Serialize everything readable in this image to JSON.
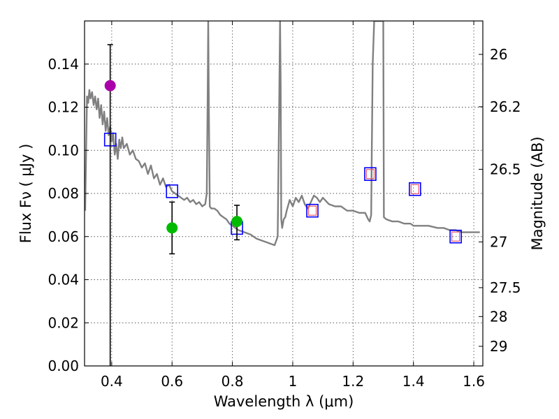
{
  "chart_data": {
    "type": "scatter",
    "xlabel": "Wavelength  λ (μm)",
    "ylabel": "Flux  Fν  ( μJy )",
    "y2label": "Magnitude (AB)",
    "xlim": [
      0.31,
      1.63
    ],
    "ylim": [
      0.0,
      0.16
    ],
    "grid": true,
    "x_ticks": [
      0.4,
      0.6,
      0.8,
      1,
      1.2,
      1.4,
      1.6
    ],
    "x_tick_labels": [
      "0.4",
      "0.6",
      "0.8",
      "1",
      "1.2",
      "1.4",
      "1.6"
    ],
    "y_ticks": [
      0.0,
      0.02,
      0.04,
      0.06,
      0.08,
      0.1,
      0.12,
      0.14
    ],
    "y_tick_labels": [
      "0.00",
      "0.02",
      "0.04",
      "0.06",
      "0.08",
      "0.10",
      "0.12",
      "0.14"
    ],
    "y2_ticks": [
      {
        "label": "26",
        "flux": 0.1445
      },
      {
        "label": "26.2",
        "flux": 0.1202
      },
      {
        "label": "26.5",
        "flux": 0.0912
      },
      {
        "label": "27",
        "flux": 0.0575
      },
      {
        "label": "27.5",
        "flux": 0.0363
      },
      {
        "label": "28",
        "flux": 0.0229
      },
      {
        "label": "29",
        "flux": 0.0091
      }
    ],
    "series": [
      {
        "style": "line",
        "color": "#808080",
        "x": [
          0.312,
          0.318,
          0.322,
          0.326,
          0.33,
          0.335,
          0.34,
          0.345,
          0.35,
          0.355,
          0.36,
          0.365,
          0.37,
          0.375,
          0.38,
          0.385,
          0.39,
          0.395,
          0.4,
          0.405,
          0.41,
          0.415,
          0.42,
          0.425,
          0.43,
          0.435,
          0.44,
          0.45,
          0.46,
          0.47,
          0.48,
          0.49,
          0.5,
          0.51,
          0.52,
          0.53,
          0.54,
          0.55,
          0.56,
          0.57,
          0.58,
          0.59,
          0.6,
          0.61,
          0.62,
          0.63,
          0.64,
          0.65,
          0.66,
          0.67,
          0.68,
          0.69,
          0.7,
          0.71,
          0.715,
          0.718,
          0.72,
          0.722,
          0.725,
          0.73,
          0.74,
          0.75,
          0.76,
          0.77,
          0.78,
          0.79,
          0.8,
          0.81,
          0.82,
          0.84,
          0.86,
          0.88,
          0.9,
          0.92,
          0.94,
          0.95,
          0.955,
          0.958,
          0.96,
          0.962,
          0.965,
          0.97,
          0.975,
          0.98,
          0.99,
          1.0,
          1.01,
          1.02,
          1.03,
          1.04,
          1.05,
          1.06,
          1.07,
          1.08,
          1.09,
          1.1,
          1.12,
          1.14,
          1.16,
          1.18,
          1.2,
          1.22,
          1.24,
          1.25,
          1.255,
          1.26,
          1.262,
          1.265,
          1.27,
          1.28,
          1.29,
          1.3,
          1.302,
          1.31,
          1.33,
          1.35,
          1.37,
          1.39,
          1.4,
          1.42,
          1.45,
          1.48,
          1.5,
          1.52,
          1.54,
          1.56,
          1.58,
          1.6,
          1.62
        ],
        "y": [
          0.072,
          0.125,
          0.122,
          0.128,
          0.124,
          0.127,
          0.121,
          0.125,
          0.119,
          0.124,
          0.115,
          0.121,
          0.112,
          0.118,
          0.109,
          0.115,
          0.107,
          0.111,
          0.104,
          0.108,
          0.098,
          0.103,
          0.096,
          0.105,
          0.101,
          0.106,
          0.101,
          0.103,
          0.098,
          0.1,
          0.096,
          0.095,
          0.092,
          0.094,
          0.089,
          0.093,
          0.087,
          0.089,
          0.084,
          0.087,
          0.083,
          0.084,
          0.081,
          0.08,
          0.079,
          0.078,
          0.077,
          0.078,
          0.076,
          0.077,
          0.075,
          0.076,
          0.074,
          0.075,
          0.08,
          0.125,
          0.16,
          0.12,
          0.074,
          0.073,
          0.073,
          0.072,
          0.07,
          0.069,
          0.068,
          0.066,
          0.065,
          0.064,
          0.063,
          0.062,
          0.061,
          0.059,
          0.058,
          0.057,
          0.056,
          0.06,
          0.12,
          0.16,
          0.13,
          0.068,
          0.064,
          0.068,
          0.069,
          0.072,
          0.077,
          0.074,
          0.078,
          0.076,
          0.079,
          0.075,
          0.073,
          0.076,
          0.079,
          0.078,
          0.076,
          0.078,
          0.075,
          0.074,
          0.074,
          0.072,
          0.072,
          0.071,
          0.071,
          0.068,
          0.067,
          0.07,
          0.1,
          0.14,
          0.16,
          0.16,
          0.16,
          0.16,
          0.069,
          0.068,
          0.067,
          0.067,
          0.066,
          0.066,
          0.065,
          0.065,
          0.065,
          0.064,
          0.064,
          0.063,
          0.063,
          0.062,
          0.062,
          0.062,
          0.062
        ]
      },
      {
        "style": "square-marker",
        "color": "#0000ff",
        "x": [
          0.395,
          0.6,
          0.815,
          1.065,
          1.257,
          1.405,
          1.54
        ],
        "y": [
          0.105,
          0.081,
          0.064,
          0.072,
          0.089,
          0.082,
          0.06
        ]
      },
      {
        "style": "small-square-marker",
        "color": "#e85a6e",
        "x": [
          1.065,
          1.257,
          1.405,
          1.54
        ],
        "y": [
          0.072,
          0.089,
          0.082,
          0.06
        ]
      },
      {
        "style": "circle-with-errorbar",
        "color": "#aa00aa",
        "x": [
          0.395
        ],
        "y": [
          0.13
        ],
        "err_low": [
          0.0
        ],
        "err_high": [
          0.149
        ]
      },
      {
        "style": "circle-with-errorbar",
        "color": "#00bb00",
        "x": [
          0.6,
          0.815
        ],
        "y": [
          0.064,
          0.067
        ],
        "err_low": [
          0.052,
          0.0585
        ],
        "err_high": [
          0.076,
          0.0745
        ]
      }
    ]
  }
}
